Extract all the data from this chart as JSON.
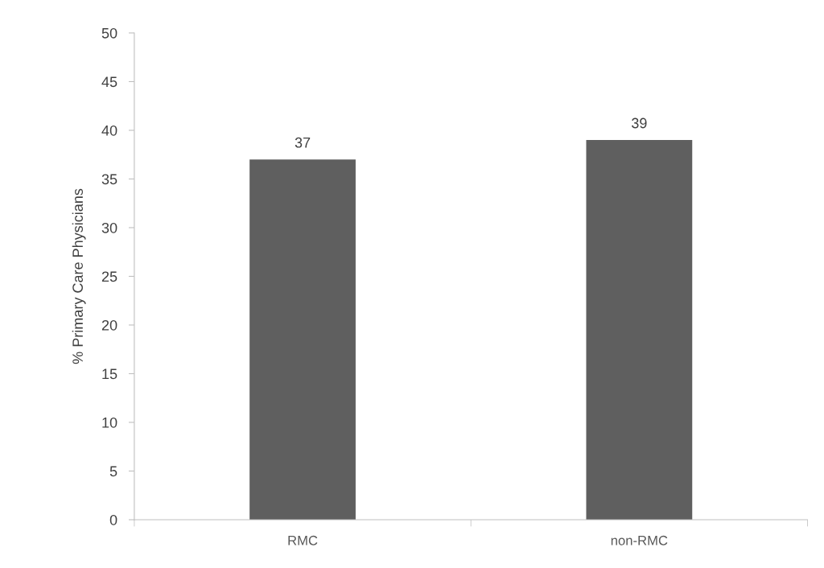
{
  "chart_data": {
    "type": "bar",
    "ylabel": "% Primary Care Physicians",
    "categories": [
      "RMC",
      "non-RMC"
    ],
    "values": [
      37,
      39
    ],
    "color": "#5f5f5f",
    "ylim": [
      0,
      50
    ],
    "yticks": [
      0,
      5,
      10,
      15,
      20,
      25,
      30,
      35,
      40,
      45,
      50
    ],
    "grid": false,
    "data_labels": true
  }
}
